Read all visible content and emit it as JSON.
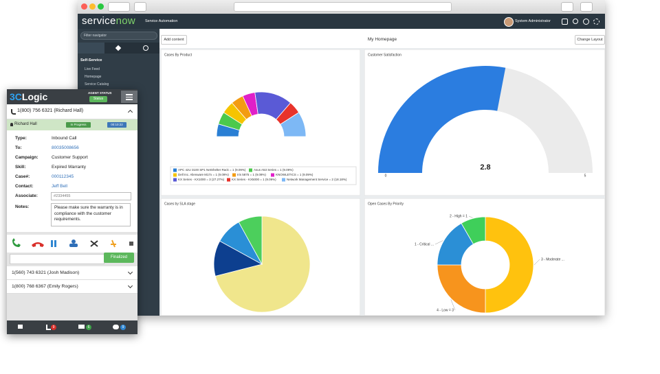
{
  "servicenow": {
    "logo_parts": [
      "service",
      "now"
    ],
    "subtitle": "Service Automation",
    "user": "System Administrator",
    "filter": "Filter navigator",
    "nav_section": "Self-Service",
    "nav_items": [
      "Live Feed",
      "Homepage",
      "Service Catalog"
    ],
    "add_content": "Add content",
    "page_title": "My Homepage",
    "change_layout": "Change Layout"
  },
  "chart_data": [
    {
      "type": "semi-donut",
      "title": "Cases By Product",
      "categories": [
        "APC 42U 3100 SP1 NetShelter Rack = 1 (9.09%)",
        "Asus A53 Series = 1 (9.09%)",
        "Dell Inc. Alienware M17x = 1 (9.09%)",
        "Iris 5875 = 1 (9.09%)",
        "KNOWLETICS = 1 (9.09%)",
        "KX Series - KX1000 = 3 (27.27%)",
        "KX Series - KX5000 = 1 (9.09%)",
        "Network Management Service = 2 (18.18%)"
      ],
      "values": [
        1,
        1,
        1,
        1,
        1,
        3,
        1,
        2
      ],
      "colors": [
        "#2a7fd4",
        "#4cc94c",
        "#f5c400",
        "#f39c12",
        "#e020c8",
        "#5a5ad6",
        "#e8332b",
        "#7db8f5"
      ]
    },
    {
      "type": "gauge",
      "title": "Customer Satisfaction",
      "value": 2.8,
      "ylim": [
        0,
        5
      ],
      "yticks": [
        0,
        5
      ],
      "color": "#2b7de0",
      "track_color": "#ebebeb"
    },
    {
      "type": "pie",
      "title": "Cases by SLA stage",
      "categories": [
        null,
        null,
        null,
        null
      ],
      "values": [
        71,
        12,
        9,
        8
      ],
      "colors": [
        "#f0e68c",
        "#0d3f8f",
        "#2a8fd6",
        "#4ccf5c"
      ]
    },
    {
      "type": "donut",
      "title": "Open Cases By Priority",
      "categories": [
        "3 - Moderate ...",
        "4 - Low = 3",
        "1 - Critical ...",
        "2 - High = 1"
      ],
      "values": [
        6,
        3,
        2,
        1
      ],
      "colors": [
        "#ffc20e",
        "#f7941d",
        "#2b8fd6",
        "#3fcf5a"
      ]
    }
  ],
  "agent_panel": {
    "logo_parts": [
      "3C",
      "Logic"
    ],
    "agent_status_label": "AGENT STATUS",
    "status": "Status",
    "active_call": "1(800) 756 6321 (Richard Hall)",
    "caller": "Richard Hall",
    "call_state": "In Progress",
    "timer": "00:10:22",
    "fields": [
      {
        "label": "Type:",
        "value": "Inbound Call",
        "link": false
      },
      {
        "label": "To:",
        "value": "80035008656",
        "link": true
      },
      {
        "label": "Campaign:",
        "value": "Customer Support",
        "link": false
      },
      {
        "label": "Skill:",
        "value": "Expired Warranty",
        "link": false
      },
      {
        "label": "Case#:",
        "value": "000112345",
        "link": true
      },
      {
        "label": "Contact:",
        "value": "Jeff Bell",
        "link": true
      }
    ],
    "associate_label": "Associate:",
    "associate_value": "#2334455",
    "notes_label": "Notes:",
    "notes": "Please make sure the warranty is in compliance with the customer requirements.",
    "finalized": "Finalized",
    "other_calls": [
      "1(560) 743 6321 (Josh Madison)",
      "1(800) 768 6367 (Emily Rogers)"
    ],
    "badges": [
      9,
      6,
      9
    ]
  }
}
